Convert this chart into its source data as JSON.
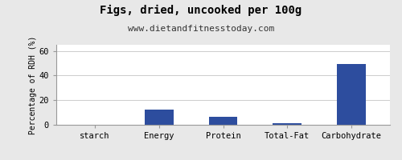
{
  "title": "Figs, dried, uncooked per 100g",
  "subtitle": "www.dietandfitnesstoday.com",
  "categories": [
    "starch",
    "Energy",
    "Protein",
    "Total-Fat",
    "Carbohydrate"
  ],
  "values": [
    0,
    12.5,
    6.5,
    1.0,
    49.5
  ],
  "bar_color": "#2d4d9e",
  "ylabel": "Percentage of RDH (%)",
  "ylim": [
    0,
    65
  ],
  "yticks": [
    0,
    20,
    40,
    60
  ],
  "background_color": "#e8e8e8",
  "plot_bg_color": "#ffffff",
  "title_fontsize": 10,
  "subtitle_fontsize": 8,
  "ylabel_fontsize": 7,
  "tick_fontsize": 7.5
}
